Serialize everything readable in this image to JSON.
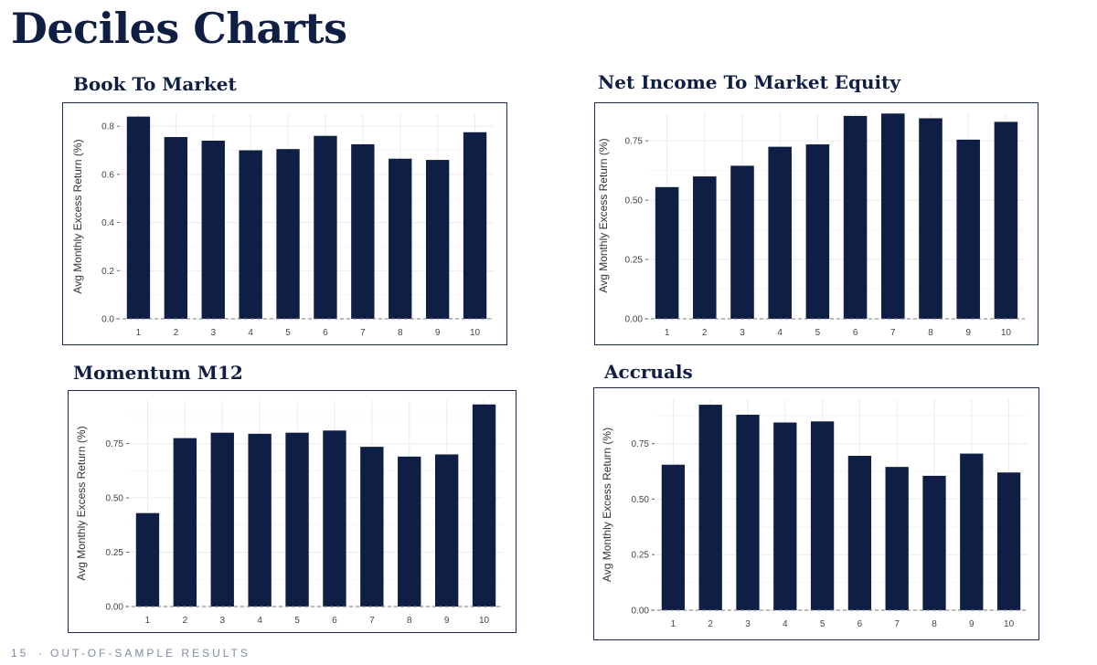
{
  "page": {
    "title": "Deciles Charts",
    "footer_number": "15",
    "footer_sep": "·",
    "footer_text": "OUT-OF-SAMPLE RESULTS"
  },
  "colors": {
    "bar": "#0e1e45",
    "text": "#0f1f44",
    "grid": "#ebebeb",
    "tick": "#444444",
    "dash": "#7a7a7a"
  },
  "chart_data": [
    {
      "id": "book-to-market",
      "title": "Book To Market",
      "type": "bar",
      "ylabel": "Avg Monthly Excess Return (%)",
      "xlabel": "",
      "categories": [
        "1",
        "2",
        "3",
        "4",
        "5",
        "6",
        "7",
        "8",
        "9",
        "10"
      ],
      "values": [
        0.84,
        0.755,
        0.74,
        0.7,
        0.705,
        0.76,
        0.725,
        0.665,
        0.66,
        0.775
      ],
      "ylim": [
        0,
        0.85
      ],
      "yticks": [
        0.0,
        0.2,
        0.4,
        0.6,
        0.8
      ],
      "ytick_labels": [
        "0.0",
        "0.2",
        "0.4",
        "0.6",
        "0.8"
      ],
      "grid": true
    },
    {
      "id": "net-income-to-market-equity",
      "title": "Net Income To Market Equity",
      "type": "bar",
      "ylabel": "Avg Monthly Excess Return (%)",
      "xlabel": "",
      "categories": [
        "1",
        "2",
        "3",
        "4",
        "5",
        "6",
        "7",
        "8",
        "9",
        "10"
      ],
      "values": [
        0.555,
        0.6,
        0.645,
        0.725,
        0.735,
        0.855,
        0.865,
        0.845,
        0.755,
        0.83
      ],
      "ylim": [
        0,
        0.87
      ],
      "yticks": [
        0.0,
        0.25,
        0.5,
        0.75
      ],
      "ytick_labels": [
        "0.00",
        "0.25",
        "0.50",
        "0.75"
      ],
      "grid": true
    },
    {
      "id": "momentum-m12",
      "title": "Momentum M12",
      "type": "bar",
      "ylabel": "Avg Monthly Excess Return (%)",
      "xlabel": "",
      "categories": [
        "1",
        "2",
        "3",
        "4",
        "5",
        "6",
        "7",
        "8",
        "9",
        "10"
      ],
      "values": [
        0.43,
        0.775,
        0.8,
        0.795,
        0.8,
        0.81,
        0.735,
        0.69,
        0.7,
        0.93
      ],
      "ylim": [
        0,
        0.95
      ],
      "yticks": [
        0.0,
        0.25,
        0.5,
        0.75
      ],
      "ytick_labels": [
        "0.00",
        "0.25",
        "0.50",
        "0.75"
      ],
      "grid": true
    },
    {
      "id": "accruals",
      "title": "Accruals",
      "type": "bar",
      "ylabel": "Avg Monthly Excess Return (%)",
      "xlabel": "",
      "categories": [
        "1",
        "2",
        "3",
        "4",
        "5",
        "6",
        "7",
        "8",
        "9",
        "10"
      ],
      "values": [
        0.655,
        0.925,
        0.88,
        0.845,
        0.85,
        0.695,
        0.645,
        0.605,
        0.705,
        0.62
      ],
      "ylim": [
        0,
        0.95
      ],
      "yticks": [
        0.0,
        0.25,
        0.5,
        0.75
      ],
      "ytick_labels": [
        "0.00",
        "0.25",
        "0.50",
        "0.75"
      ],
      "grid": true
    }
  ]
}
